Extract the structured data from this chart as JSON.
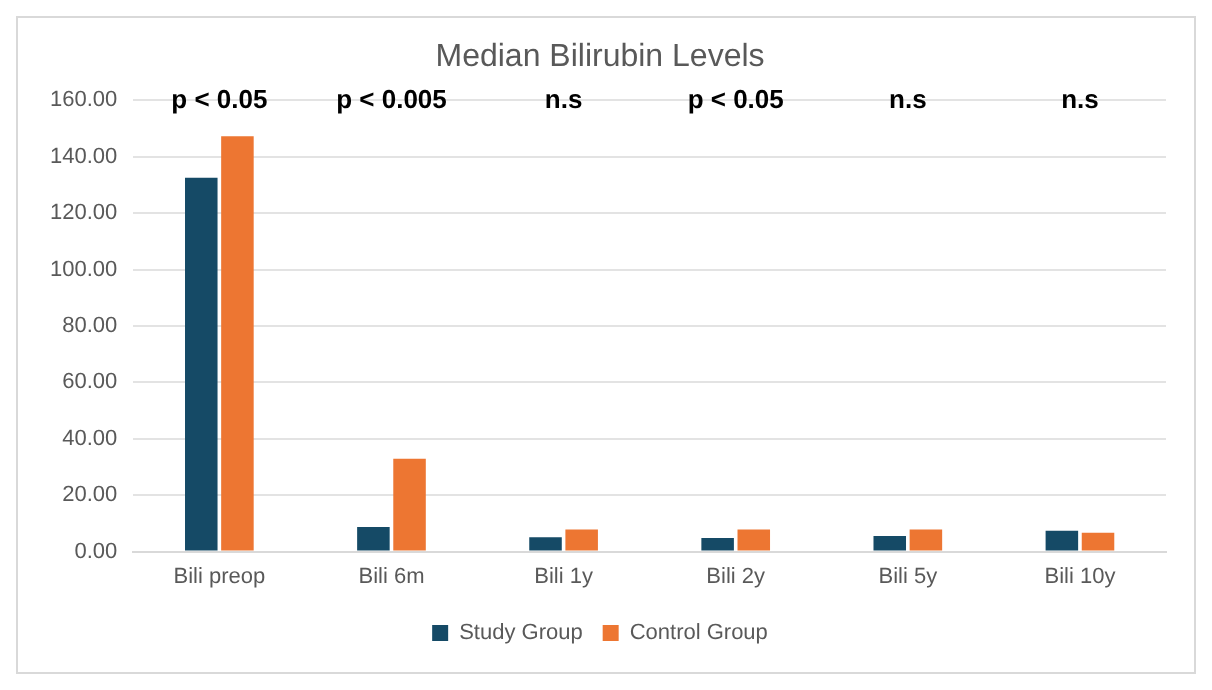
{
  "chart_data": {
    "type": "bar",
    "title": "Median Bilirubin Levels",
    "categories": [
      "Bili preop",
      "Bili 6m",
      "Bili 1y",
      "Bili 2y",
      "Bili 5y",
      "Bili 10y"
    ],
    "series": [
      {
        "name": "Study Group",
        "color": "#154a66",
        "values": [
          132.6,
          8.7,
          5.1,
          4.8,
          5.5,
          7.4
        ]
      },
      {
        "name": "Control Group",
        "color": "#ed7632",
        "values": [
          147.3,
          32.9,
          7.8,
          7.8,
          7.8,
          6.7
        ]
      }
    ],
    "ylim": [
      0,
      160
    ],
    "yticks": [
      {
        "value": 0,
        "label": "0.00"
      },
      {
        "value": 20,
        "label": "20.00"
      },
      {
        "value": 40,
        "label": "40.00"
      },
      {
        "value": 60,
        "label": "60.00"
      },
      {
        "value": 80,
        "label": "80.00"
      },
      {
        "value": 100,
        "label": "100.00"
      },
      {
        "value": 120,
        "label": "120.00"
      },
      {
        "value": 140,
        "label": "140.00"
      },
      {
        "value": 160,
        "label": "160.00"
      }
    ],
    "grid": "y",
    "legend": "bottom",
    "annotations": [
      "p < 0.05",
      "p < 0.005",
      "n.s",
      "p < 0.05",
      "n.s",
      "n.s"
    ]
  }
}
